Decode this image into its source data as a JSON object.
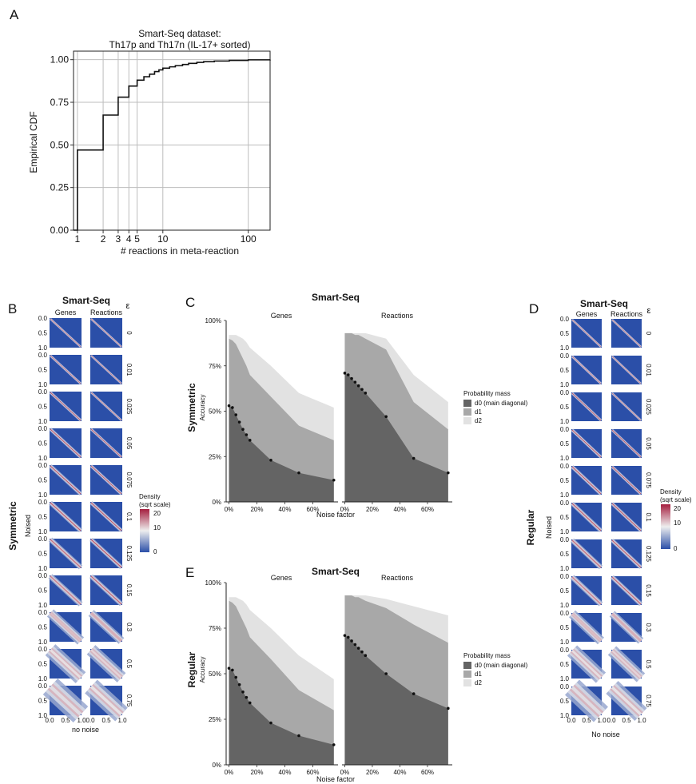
{
  "panel_letters": {
    "A": "A",
    "B": "B",
    "C": "C",
    "D": "D",
    "E": "E"
  },
  "colors": {
    "dark": "#646464",
    "mid": "#a8a8a8",
    "light": "#e2e2e2",
    "heat_low": "#2b4fa8",
    "heat_mid": "#eeeeee",
    "heat_high": "#a51f3f",
    "grid": "#bdbdbd",
    "point": "#111111"
  },
  "panel_A": {
    "title_line1": "Smart-Seq dataset:",
    "title_line2": "Th17p and Th17n (IL-17+ sorted)",
    "xlabel": "# reactions in meta-reaction",
    "ylabel": "Empirical CDF"
  },
  "heatmap_panels": {
    "B": {
      "title": "Smart-Seq",
      "col1": "Genes",
      "col2": "Reactions",
      "eps_header": "ε",
      "row_label": "Symmetric",
      "ylabel": "Noised",
      "xlabel": "no noise"
    },
    "D": {
      "title": "Smart-Seq",
      "col1": "Genes",
      "col2": "Reactions",
      "eps_header": "ε",
      "row_label": "Regular",
      "ylabel": "Noised",
      "xlabel": "No noise"
    }
  },
  "heatmap_axis": {
    "y_ticks": [
      "0.0",
      "0.5",
      "1.0"
    ],
    "x_ticks": [
      "0.0",
      "0.5",
      "1.0"
    ]
  },
  "legend_density": {
    "title_line1": "Density",
    "title_line2": "(sqrt scale)",
    "ticks": [
      "20",
      "10",
      "0"
    ]
  },
  "accuracy_panels": {
    "C": {
      "title": "Smart-Seq",
      "row_label": "Symmetric",
      "ylabel": "Accuracy",
      "xlabel": "Noise factor",
      "facet1": "Genes",
      "facet2": "Reactions"
    },
    "E": {
      "title": "Smart-Seq",
      "row_label": "Regular",
      "ylabel": "Accuracy",
      "xlabel": "Noise factor",
      "facet1": "Genes",
      "facet2": "Reactions"
    }
  },
  "legend_prob": {
    "title": "Probability mass",
    "items": [
      "d0 (main diagonal)",
      "d1",
      "d2"
    ]
  },
  "chart_data": [
    {
      "id": "A",
      "type": "line",
      "title": "Smart-Seq dataset:\nTh17p and Th17n (IL-17+ sorted)",
      "xlabel": "# reactions in meta-reaction",
      "ylabel": "Empirical CDF",
      "x_scale": "log",
      "xlim": [
        0.9,
        180
      ],
      "ylim": [
        0,
        1.05
      ],
      "x_ticks": [
        1,
        2,
        3,
        4,
        5,
        10,
        100
      ],
      "y_ticks": [
        0,
        0.25,
        0.5,
        0.75,
        1.0
      ],
      "y_tick_labels": [
        "0.00",
        "0.25",
        "0.50",
        "0.75",
        "1.00"
      ],
      "grid": true,
      "step_x": [
        1,
        2,
        3,
        4,
        5,
        6,
        7,
        8,
        9,
        10,
        12,
        14,
        17,
        20,
        25,
        30,
        40,
        60,
        100,
        180
      ],
      "step_y": [
        0.47,
        0.675,
        0.78,
        0.845,
        0.88,
        0.9,
        0.915,
        0.93,
        0.94,
        0.95,
        0.958,
        0.965,
        0.972,
        0.978,
        0.984,
        0.988,
        0.992,
        0.996,
        0.999,
        1.0
      ]
    },
    {
      "id": "B",
      "type": "heatmap",
      "epsilons": [
        "0",
        "0.01",
        "0.025",
        "0.05",
        "0.075",
        "0.1",
        "0.125",
        "0.15",
        "0.3",
        "0.5",
        "0.75"
      ],
      "columns": [
        "Genes",
        "Reactions"
      ],
      "spread_genes": [
        0.02,
        0.022,
        0.025,
        0.03,
        0.035,
        0.04,
        0.045,
        0.05,
        0.085,
        0.13,
        0.19
      ],
      "spread_reactions": [
        0.015,
        0.017,
        0.02,
        0.024,
        0.028,
        0.033,
        0.038,
        0.042,
        0.07,
        0.11,
        0.16
      ]
    },
    {
      "id": "C",
      "type": "area",
      "x_percent": [
        0,
        2.5,
        5,
        7.5,
        10,
        12.5,
        15,
        30,
        50,
        75
      ],
      "x_ticks": [
        "0%",
        "20%",
        "40%",
        "60%"
      ],
      "y_ticks": [
        "0%",
        "25%",
        "50%",
        "75%",
        "100%"
      ],
      "facets": [
        {
          "name": "Genes",
          "d0": [
            53,
            52,
            48,
            44,
            40,
            37,
            34,
            23,
            16,
            12
          ],
          "d0_plus_d1": [
            90,
            89,
            87,
            83,
            79,
            75,
            70,
            58,
            42,
            34
          ],
          "d0_plus_d1_plus_d2": [
            92,
            92,
            92,
            91,
            90,
            88,
            85,
            75,
            60,
            52
          ]
        },
        {
          "name": "Reactions",
          "d0": [
            71,
            70,
            68,
            66,
            64,
            62,
            60,
            47,
            24,
            16
          ],
          "d0_plus_d1": [
            93,
            93,
            93,
            92,
            92,
            91,
            90,
            84,
            55,
            40
          ],
          "d0_plus_d1_plus_d2": [
            93,
            93,
            93,
            93,
            93,
            93,
            93,
            90,
            70,
            55
          ]
        }
      ]
    },
    {
      "id": "D",
      "type": "heatmap",
      "epsilons": [
        "0",
        "0.01",
        "0.025",
        "0.05",
        "0.075",
        "0.1",
        "0.125",
        "0.15",
        "0.3",
        "0.5",
        "0.75"
      ],
      "columns": [
        "Genes",
        "Reactions"
      ],
      "spread_genes": [
        0.02,
        0.022,
        0.025,
        0.03,
        0.035,
        0.04,
        0.045,
        0.05,
        0.085,
        0.13,
        0.19
      ],
      "spread_reactions": [
        0.015,
        0.017,
        0.02,
        0.024,
        0.028,
        0.033,
        0.038,
        0.042,
        0.07,
        0.11,
        0.16
      ]
    },
    {
      "id": "E",
      "type": "area",
      "x_percent": [
        0,
        2.5,
        5,
        7.5,
        10,
        12.5,
        15,
        30,
        50,
        75
      ],
      "x_ticks": [
        "0%",
        "20%",
        "40%",
        "60%"
      ],
      "y_ticks": [
        "0%",
        "25%",
        "50%",
        "75%",
        "100%"
      ],
      "facets": [
        {
          "name": "Genes",
          "d0": [
            53,
            52,
            48,
            44,
            40,
            37,
            34,
            23,
            16,
            11
          ],
          "d0_plus_d1": [
            90,
            89,
            87,
            83,
            79,
            75,
            70,
            58,
            41,
            30
          ],
          "d0_plus_d1_plus_d2": [
            92,
            92,
            92,
            91,
            90,
            88,
            85,
            75,
            60,
            47
          ]
        },
        {
          "name": "Reactions",
          "d0": [
            71,
            70,
            68,
            66,
            64,
            62,
            60,
            50,
            39,
            31
          ],
          "d0_plus_d1": [
            93,
            93,
            93,
            92,
            92,
            91,
            90,
            86,
            77,
            67
          ],
          "d0_plus_d1_plus_d2": [
            93,
            93,
            93,
            93,
            93,
            93,
            93,
            91,
            87,
            82
          ]
        }
      ]
    }
  ]
}
